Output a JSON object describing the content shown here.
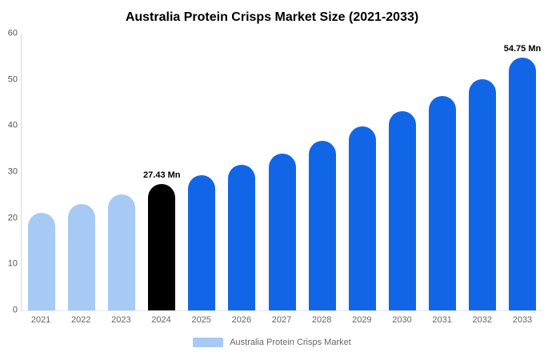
{
  "chart_data": {
    "type": "bar",
    "title": "Australia Protein Crisps Market Size (2021-2033)",
    "categories": [
      "2021",
      "2022",
      "2023",
      "2024",
      "2025",
      "2026",
      "2027",
      "2028",
      "2029",
      "2030",
      "2031",
      "2032",
      "2033"
    ],
    "values": [
      21.2,
      23.1,
      25.1,
      27.43,
      29.3,
      31.5,
      34.0,
      36.7,
      39.9,
      43.1,
      46.4,
      50.2,
      54.75
    ],
    "bar_colors": [
      "light",
      "light",
      "light",
      "black",
      "blue",
      "blue",
      "blue",
      "blue",
      "blue",
      "blue",
      "blue",
      "blue",
      "blue"
    ],
    "colors": {
      "light": "#a6caf4",
      "black": "#000000",
      "blue": "#1166e8"
    },
    "annotations": [
      {
        "index": 3,
        "text": "27.43 Mn"
      },
      {
        "index": 12,
        "text": "54.75 Mn"
      }
    ],
    "ylim": [
      0,
      60
    ],
    "yticks": [
      0,
      10,
      20,
      30,
      40,
      50,
      60
    ],
    "xlabel": "",
    "ylabel": "",
    "grid": false,
    "legend": [
      {
        "label": "Australia Protein Crisps Market",
        "color": "#a6caf4"
      }
    ],
    "legend_position": "bottom"
  }
}
